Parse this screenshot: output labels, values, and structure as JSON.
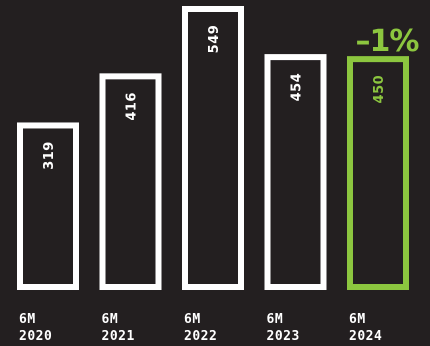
{
  "chart_data": {
    "type": "bar",
    "categories": [
      [
        "6M",
        "2020"
      ],
      [
        "6M",
        "2021"
      ],
      [
        "6M",
        "2022"
      ],
      [
        "6M",
        "2023"
      ],
      [
        "6M",
        "2024"
      ]
    ],
    "values": [
      319,
      416,
      549,
      454,
      450
    ],
    "data_labels": [
      "319",
      "416",
      "549",
      "454",
      "450"
    ],
    "highlight_index": 4,
    "annotation": "–1%",
    "colors": {
      "background": "#231f20",
      "bar_outline": "#ffffff",
      "highlight": "#8cc63f",
      "text": "#ffffff"
    },
    "ylim": [
      0,
      549
    ],
    "grid": false,
    "legend": "none"
  }
}
